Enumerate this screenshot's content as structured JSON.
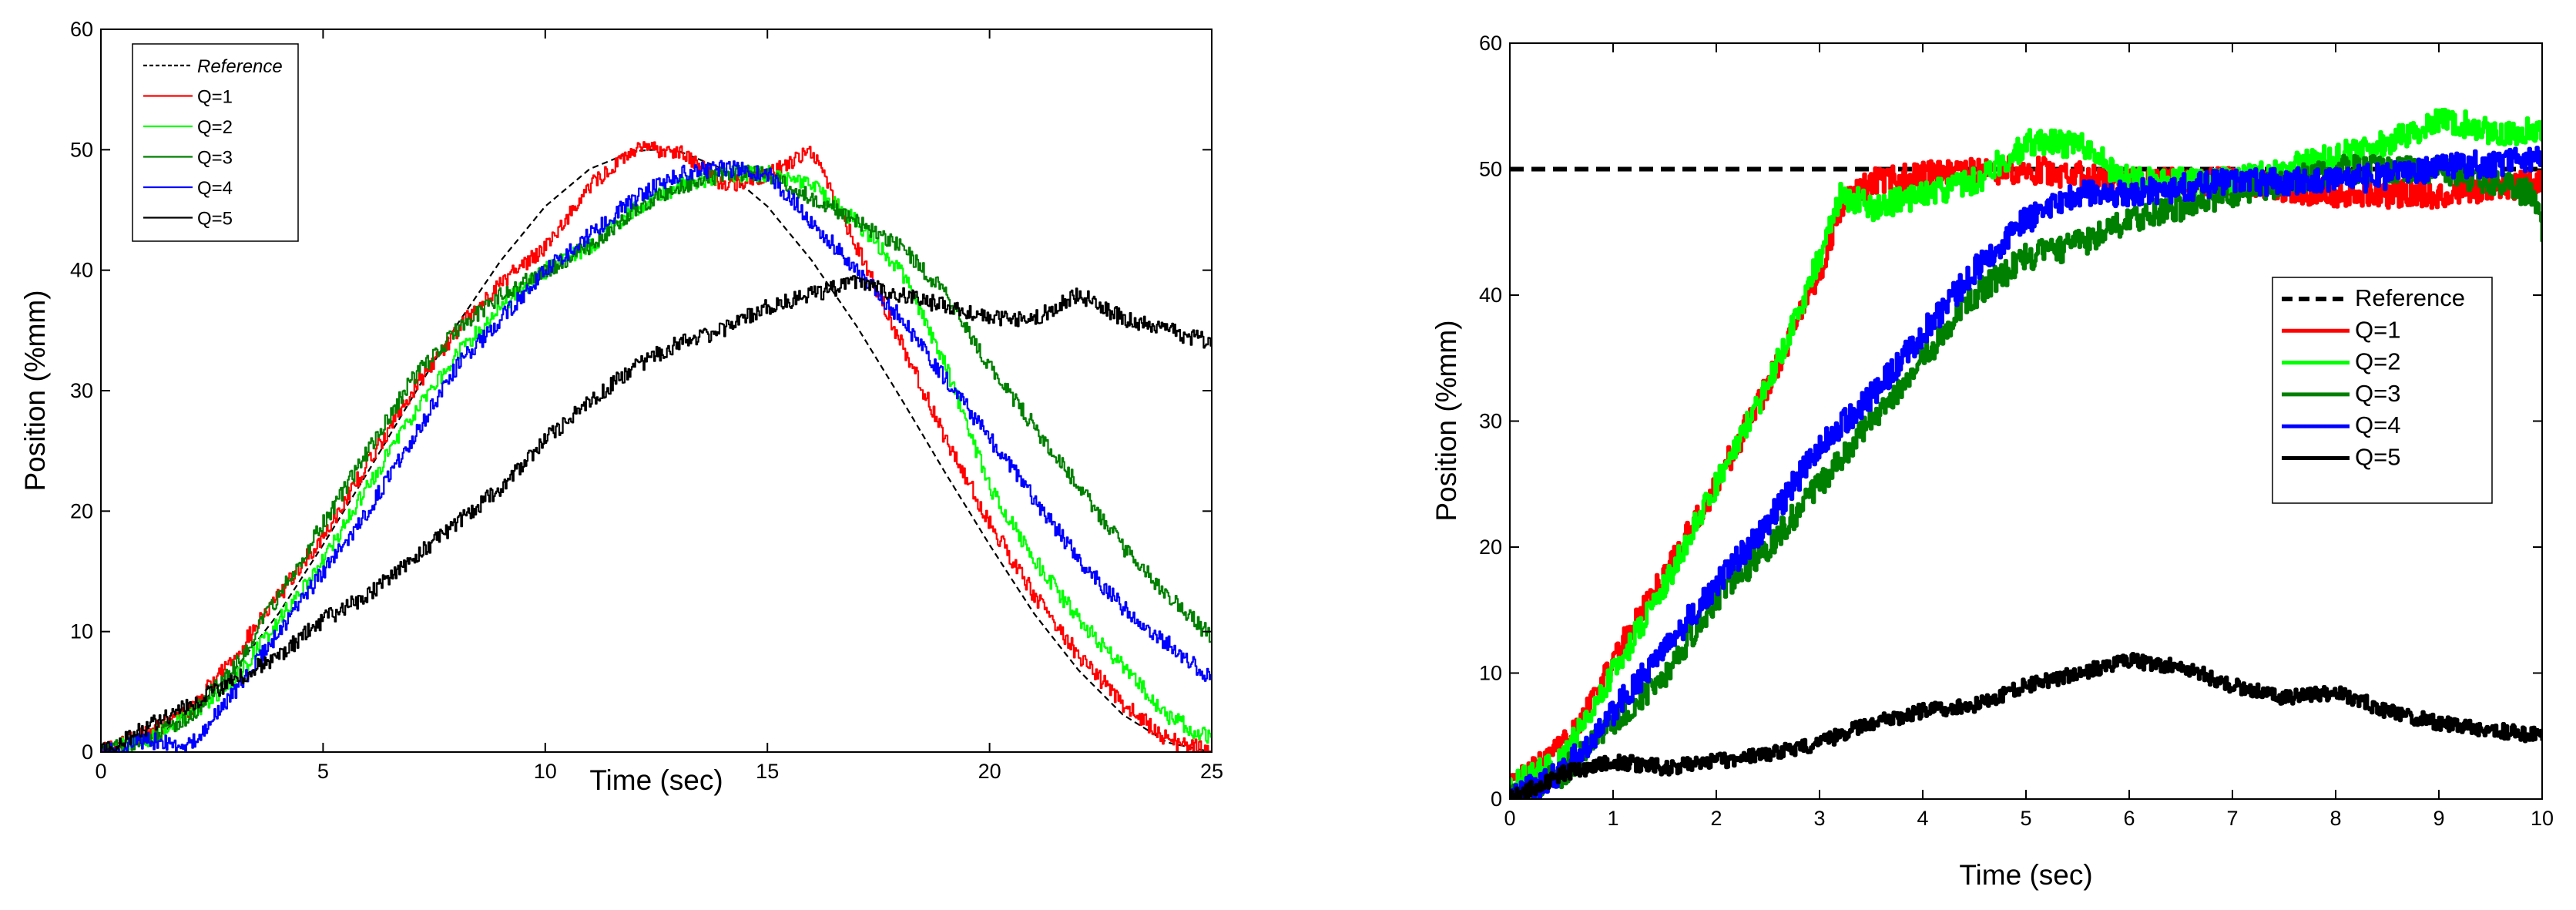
{
  "chart_data": [
    {
      "type": "line",
      "title": "",
      "xlabel": "Time (sec)",
      "ylabel": "Position (%mm)",
      "xlim": [
        0,
        25
      ],
      "ylim": [
        0,
        60
      ],
      "xticks": [
        0,
        5,
        10,
        15,
        20,
        25
      ],
      "yticks": [
        0,
        10,
        20,
        30,
        40,
        50,
        60
      ],
      "grid": false,
      "legend_position": "top-left",
      "series": [
        {
          "name": "Reference",
          "color": "#000000",
          "dashed": true,
          "noise": 0,
          "x": [
            0,
            1,
            2,
            3,
            4,
            5,
            6,
            7,
            8,
            9,
            10,
            11,
            12,
            12.5,
            13,
            14,
            15,
            16,
            17,
            18,
            19,
            20,
            21,
            22,
            23,
            24,
            25
          ],
          "y": [
            0,
            0.8,
            3.1,
            6.8,
            11.5,
            17.2,
            23.2,
            29.4,
            35.4,
            40.8,
            45.3,
            48.4,
            49.9,
            50,
            49.9,
            48.4,
            45.3,
            40.8,
            35.4,
            29.4,
            23.2,
            17.2,
            11.5,
            6.8,
            3.1,
            0.8,
            0
          ]
        },
        {
          "name": "Q=1",
          "color": "#ff0000",
          "dashed": false,
          "noise": 0.7,
          "x": [
            0,
            1,
            2,
            3,
            4,
            5,
            6,
            7,
            8,
            9,
            10,
            11,
            12,
            13,
            14,
            15,
            16,
            17,
            18,
            19,
            20,
            21,
            22,
            23,
            24,
            25
          ],
          "y": [
            0,
            1.5,
            3.5,
            8,
            13,
            18,
            24,
            30,
            35,
            39,
            42,
            47,
            50,
            50,
            47,
            48,
            50,
            42,
            34,
            26,
            19,
            13,
            8,
            4,
            1,
            0
          ]
        },
        {
          "name": "Q=2",
          "color": "#00ff00",
          "dashed": false,
          "noise": 0.7,
          "x": [
            0,
            1,
            2,
            3,
            4,
            5,
            6,
            7,
            8,
            9,
            10,
            11,
            12,
            13,
            14,
            15,
            16,
            17,
            18,
            19,
            20,
            21,
            22,
            23,
            24,
            25
          ],
          "y": [
            0,
            1,
            3,
            6,
            11,
            16,
            22,
            28,
            33,
            37,
            40,
            42,
            45,
            47,
            48,
            48,
            47,
            44,
            40,
            32,
            22,
            16,
            11,
            7,
            3,
            1
          ]
        },
        {
          "name": "Q=3",
          "color": "#008000",
          "dashed": false,
          "noise": 0.7,
          "x": [
            0,
            1,
            2,
            3,
            4,
            5,
            6,
            7,
            8,
            9,
            10,
            11,
            12,
            13,
            14,
            15,
            16,
            17,
            18,
            19,
            20,
            21,
            22,
            23,
            24,
            25
          ],
          "y": [
            0,
            1,
            3,
            7,
            13,
            19,
            25,
            31,
            35,
            38,
            40,
            42,
            45,
            47,
            48,
            48,
            46,
            44,
            42,
            38,
            32,
            27,
            22,
            17,
            13,
            9.5
          ]
        },
        {
          "name": "Q=4",
          "color": "#0000ff",
          "dashed": false,
          "noise": 0.7,
          "x": [
            0,
            1,
            2,
            3,
            4,
            5,
            6,
            7,
            8,
            9,
            10,
            11,
            12,
            13,
            14,
            15,
            16,
            17,
            18,
            19,
            20,
            21,
            22,
            23,
            24,
            25
          ],
          "y": [
            0,
            1,
            0.5,
            5,
            10,
            15,
            20,
            26,
            32,
            36,
            40,
            43,
            46,
            48,
            48.5,
            48,
            44,
            40,
            36,
            31,
            26,
            21,
            16,
            12,
            9,
            6
          ]
        },
        {
          "name": "Q=5",
          "color": "#000000",
          "dashed": false,
          "noise": 0.7,
          "x": [
            0,
            1,
            2,
            3,
            4,
            5,
            6,
            7,
            8,
            9,
            10,
            11,
            12,
            13,
            14,
            15,
            16,
            17,
            18,
            19,
            20,
            21,
            22,
            23,
            24,
            25
          ],
          "y": [
            0,
            2,
            4,
            6,
            8,
            11,
            13,
            16,
            19,
            22,
            26,
            29,
            32,
            34,
            35,
            37,
            38,
            39,
            38,
            37,
            36,
            36,
            38,
            36,
            35,
            34
          ]
        }
      ]
    },
    {
      "type": "line",
      "title": "",
      "xlabel": "Time (sec)",
      "ylabel": "Position (%mm)",
      "xlim": [
        0,
        10
      ],
      "ylim": [
        0,
        60
      ],
      "xticks": [
        0,
        1,
        2,
        3,
        4,
        5,
        6,
        7,
        8,
        9,
        10
      ],
      "yticks": [
        0,
        10,
        20,
        30,
        40,
        50,
        60
      ],
      "grid": false,
      "legend_position": "right",
      "series": [
        {
          "name": "Reference",
          "color": "#000000",
          "dashed": true,
          "noise": 0,
          "x": [
            0,
            10
          ],
          "y": [
            50,
            50
          ]
        },
        {
          "name": "Q=1",
          "color": "#ff0000",
          "dashed": false,
          "noise": 1.1,
          "x": [
            0,
            0.5,
            1,
            1.5,
            2,
            2.5,
            3,
            3.2,
            3.5,
            4,
            5,
            6,
            7,
            8,
            9,
            10
          ],
          "y": [
            1,
            4,
            11,
            18,
            25,
            33,
            42,
            47,
            49,
            49.5,
            50,
            49,
            49,
            48,
            48,
            49
          ]
        },
        {
          "name": "Q=2",
          "color": "#00ff00",
          "dashed": false,
          "noise": 1.1,
          "x": [
            0,
            0.5,
            1,
            1.5,
            2,
            2.5,
            3,
            3.2,
            3.5,
            4,
            4.5,
            5,
            5.5,
            6,
            6.5,
            7,
            7.5,
            8,
            8.5,
            9,
            9.5,
            10
          ],
          "y": [
            1,
            3,
            10,
            17,
            25,
            33,
            43,
            48,
            47,
            48,
            49,
            52,
            52,
            49,
            49,
            49,
            50,
            51,
            52,
            54,
            53,
            53
          ]
        },
        {
          "name": "Q=3",
          "color": "#008000",
          "dashed": false,
          "noise": 1.1,
          "x": [
            0,
            0.5,
            1,
            1.5,
            2,
            2.5,
            3,
            3.5,
            4,
            4.5,
            5,
            5.5,
            6,
            7,
            8,
            9,
            9.5,
            9.9,
            10
          ],
          "y": [
            0,
            2,
            6,
            10,
            16,
            20,
            25,
            30,
            35,
            40,
            43,
            44,
            46,
            48,
            50,
            50,
            49,
            48,
            45
          ]
        },
        {
          "name": "Q=4",
          "color": "#0000ff",
          "dashed": false,
          "noise": 1.1,
          "x": [
            0,
            0.5,
            1,
            1.5,
            2,
            2.5,
            3,
            3.5,
            4,
            4.5,
            5,
            5.5,
            6,
            7,
            8,
            9,
            10
          ],
          "y": [
            0,
            2,
            7,
            12,
            17,
            22,
            28,
            32,
            37,
            42,
            46,
            48,
            48,
            49,
            49,
            50,
            51
          ]
        },
        {
          "name": "Q=5",
          "color": "#000000",
          "dashed": false,
          "noise": 0.6,
          "x": [
            0,
            0.5,
            1,
            1.5,
            2,
            2.5,
            3,
            3.5,
            4,
            4.5,
            5,
            5.5,
            6,
            6.5,
            7,
            7.5,
            8,
            8.5,
            9,
            9.5,
            10
          ],
          "y": [
            0,
            2,
            3,
            2.5,
            3,
            3.5,
            4.5,
            6,
            7,
            7.5,
            9,
            10,
            11,
            10.5,
            9,
            8,
            8.5,
            7,
            6,
            5.5,
            5
          ]
        }
      ]
    }
  ]
}
